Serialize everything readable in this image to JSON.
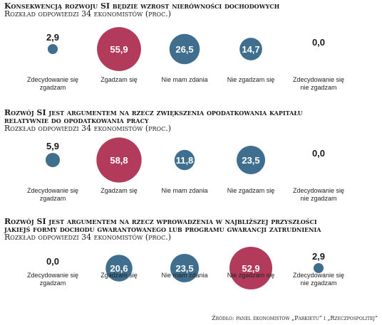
{
  "categories": [
    "Zdecydowanie się zgadzam",
    "Zgadzam się",
    "Nie mam zdania",
    "Nie zgadzam się",
    "Zdecydowanie się nie zgadzam"
  ],
  "colors": {
    "highlight": "#b23a5a",
    "normal": "#3f6e8e"
  },
  "chart_data": [
    {
      "type": "bubble",
      "title": "Konsekwencją rozwoju SI będzie wzrost nierówności dochodowych",
      "subtitle": "Rozkład odpowiedzi 34 ekonomistów (proc.)",
      "categories": [
        "Zdecydowanie się zgadzam",
        "Zgadzam się",
        "Nie mam zdania",
        "Nie zgadzam się",
        "Zdecydowanie się nie zgadzam"
      ],
      "values": [
        2.9,
        55.9,
        26.5,
        14.7,
        0.0
      ],
      "labels": [
        "2,9",
        "55,9",
        "26,5",
        "14,7",
        "0,0"
      ]
    },
    {
      "type": "bubble",
      "title": "Rozwój SI jest argumentem na rzecz zwiększenia opodatkowania kapitału",
      "title2": "relatywnie do opodatkowania pracy",
      "subtitle": "Rozkład odpowiedzi 34 ekonomistów (proc.)",
      "categories": [
        "Zdecydowanie się zgadzam",
        "Zgadzam się",
        "Nie mam zdania",
        "Nie zgadzam się",
        "Zdecydowanie się nie zgadzam"
      ],
      "values": [
        5.9,
        58.8,
        11.8,
        23.5,
        0.0
      ],
      "labels": [
        "5,9",
        "58,8",
        "11,8",
        "23,5",
        "0,0"
      ]
    },
    {
      "type": "bubble",
      "title": "Rozwój SI jest argumentem na rzecz wprowadzenia w najbliższej przyszłości",
      "title2": "jakiejś formy dochodu gwarantowanego lub programu gwarancji zatrudnienia",
      "subtitle": "Rozkład odpowiedzi 34 ekonomistów (proc.)",
      "categories": [
        "Zdecydowanie się zgadzam",
        "Zgadzam się",
        "Nie mam zdania",
        "Nie zgadzam się",
        "Zdecydowanie się nie zgadzam"
      ],
      "values": [
        0.0,
        20.6,
        23.5,
        52.9,
        2.9
      ],
      "labels": [
        "0,0",
        "20,6",
        "23,5",
        "52,9",
        "2,9"
      ]
    }
  ],
  "source": "Źródło: panel ekonomistów „Parkietu” i „Rzeczpospolitej”"
}
